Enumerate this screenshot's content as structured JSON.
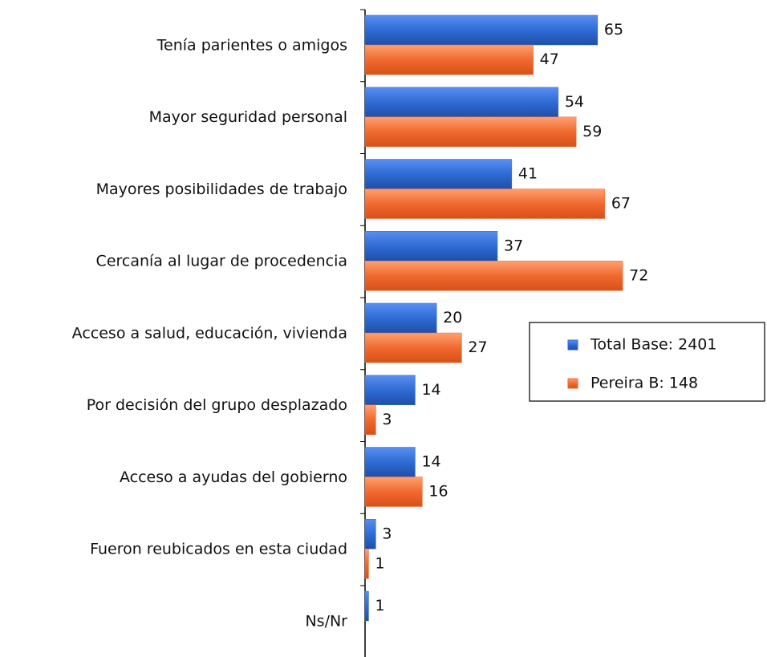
{
  "chart_data": {
    "type": "bar",
    "orientation": "horizontal",
    "categories": [
      "Tenía parientes o amigos",
      "Mayor seguridad personal",
      "Mayores posibilidades de trabajo",
      "Cercanía al lugar de procedencia",
      "Acceso a salud, educación, vivienda",
      "Por decisión del grupo desplazado",
      "Acceso a ayudas del gobierno",
      "Fueron reubicados en esta ciudad",
      "Ns/Nr"
    ],
    "series": [
      {
        "name": "Total Base: 2401",
        "color": "#2f6cd4",
        "values": [
          65,
          54,
          41,
          37,
          20,
          14,
          14,
          3,
          1
        ]
      },
      {
        "name": "Pereira B: 148",
        "color": "#f06a30",
        "values": [
          47,
          59,
          67,
          72,
          27,
          3,
          16,
          1,
          null
        ]
      }
    ],
    "xlim": [
      0,
      100
    ]
  }
}
